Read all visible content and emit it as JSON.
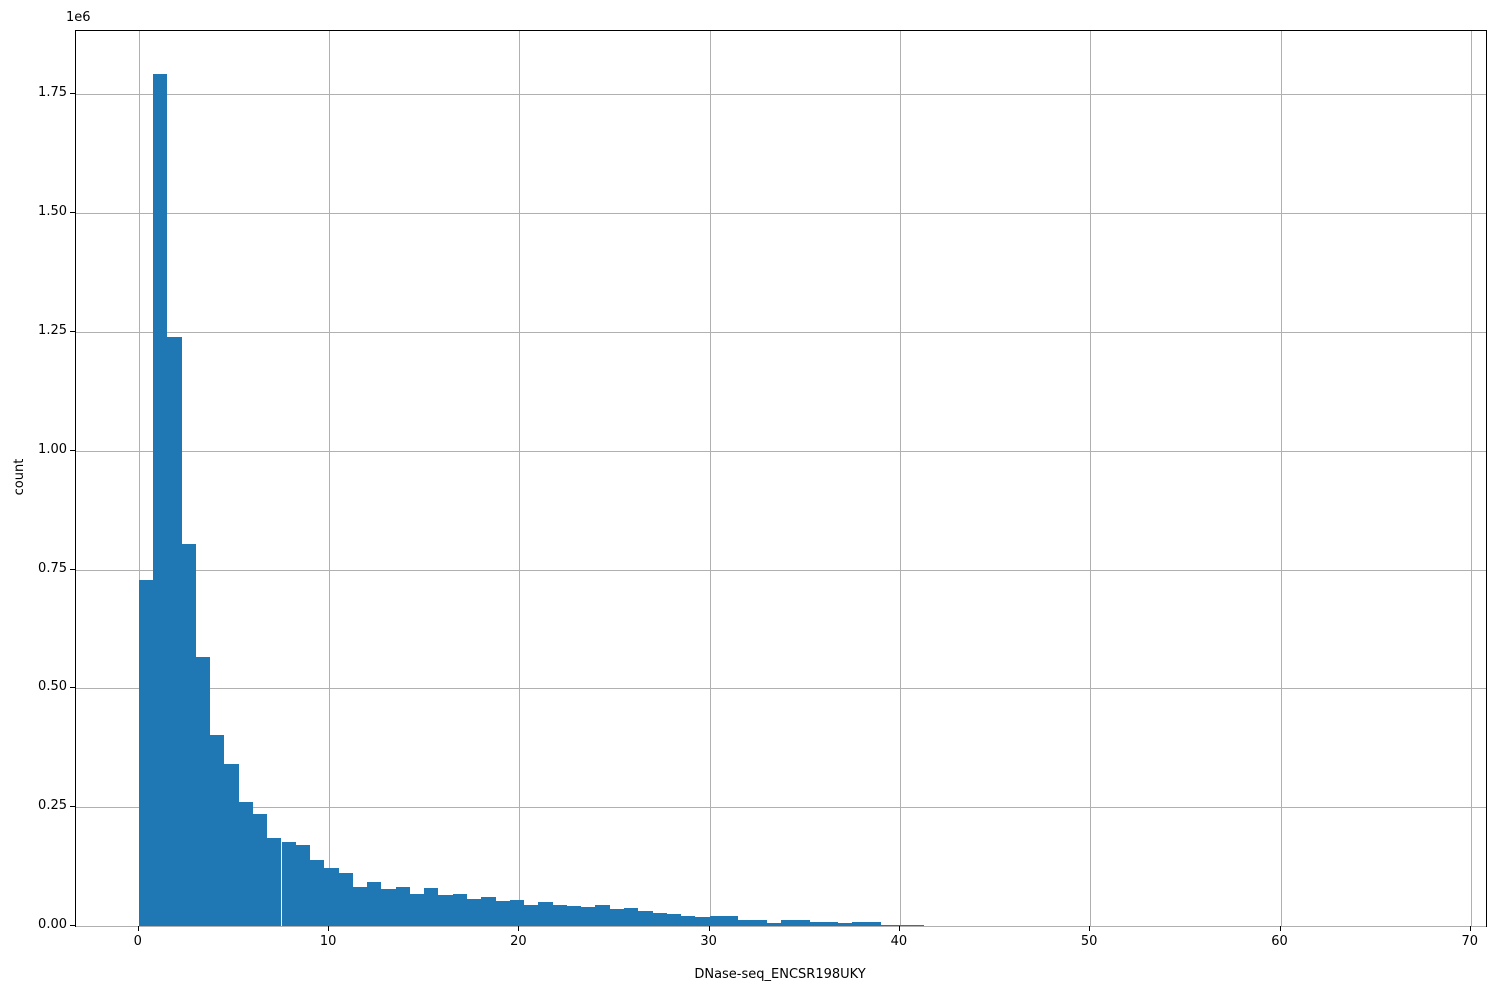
{
  "chart_data": {
    "type": "bar",
    "subtype": "histogram",
    "title": "",
    "xlabel": "DNase-seq_ENCSR198UKY",
    "ylabel": "count",
    "offset_text": "1e6",
    "bar_color": "#1f77b4",
    "grid_color": "#b0b0b0",
    "spine_color": "#000000",
    "grid": true,
    "legend": false,
    "bin_start": 0,
    "bin_width": 0.75,
    "counts": [
      728000,
      1792000,
      1239000,
      803000,
      567000,
      401000,
      341000,
      260000,
      235000,
      186000,
      177000,
      170000,
      138000,
      123000,
      112000,
      82000,
      92000,
      78000,
      82000,
      68000,
      80000,
      65000,
      68000,
      57000,
      60000,
      53000,
      55000,
      44000,
      50000,
      45000,
      43000,
      41000,
      44000,
      35000,
      37000,
      32000,
      28000,
      25000,
      22000,
      19000,
      22000,
      21000,
      12000,
      12000,
      7000,
      12000,
      12000,
      9000,
      9000,
      6000,
      9000,
      8000,
      3000,
      3000,
      2000
    ],
    "xlim": [
      -3.3,
      70.8
    ],
    "ylim": [
      0,
      1883000
    ],
    "x_ticks": [
      {
        "value": 0,
        "label": "0"
      },
      {
        "value": 10,
        "label": "10"
      },
      {
        "value": 20,
        "label": "20"
      },
      {
        "value": 30,
        "label": "30"
      },
      {
        "value": 40,
        "label": "40"
      },
      {
        "value": 50,
        "label": "50"
      },
      {
        "value": 60,
        "label": "60"
      },
      {
        "value": 70,
        "label": "70"
      }
    ],
    "y_ticks": [
      {
        "value": 0,
        "label": "0.00"
      },
      {
        "value": 250000,
        "label": "0.25"
      },
      {
        "value": 500000,
        "label": "0.50"
      },
      {
        "value": 750000,
        "label": "0.75"
      },
      {
        "value": 1000000,
        "label": "1.00"
      },
      {
        "value": 1250000,
        "label": "1.25"
      },
      {
        "value": 1500000,
        "label": "1.50"
      },
      {
        "value": 1750000,
        "label": "1.75"
      }
    ]
  }
}
